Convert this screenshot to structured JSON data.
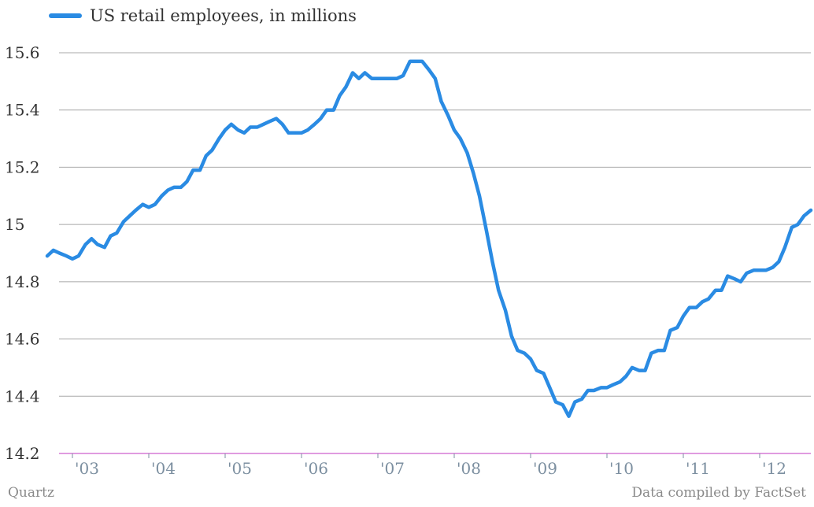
{
  "chart_data": {
    "type": "line",
    "legend_placement": "top-left",
    "series": [
      {
        "name": "US retail employees, in millions",
        "color": "#2a8be3",
        "points": [
          [
            2002.67,
            14.89
          ],
          [
            2002.75,
            14.91
          ],
          [
            2002.83,
            14.9
          ],
          [
            2002.92,
            14.89
          ],
          [
            2003.0,
            14.88
          ],
          [
            2003.08,
            14.89
          ],
          [
            2003.17,
            14.93
          ],
          [
            2003.25,
            14.95
          ],
          [
            2003.33,
            14.93
          ],
          [
            2003.42,
            14.92
          ],
          [
            2003.5,
            14.96
          ],
          [
            2003.58,
            14.97
          ],
          [
            2003.67,
            15.01
          ],
          [
            2003.75,
            15.03
          ],
          [
            2003.83,
            15.05
          ],
          [
            2003.92,
            15.07
          ],
          [
            2004.0,
            15.06
          ],
          [
            2004.08,
            15.07
          ],
          [
            2004.17,
            15.1
          ],
          [
            2004.25,
            15.12
          ],
          [
            2004.33,
            15.13
          ],
          [
            2004.42,
            15.13
          ],
          [
            2004.5,
            15.15
          ],
          [
            2004.58,
            15.19
          ],
          [
            2004.67,
            15.19
          ],
          [
            2004.75,
            15.24
          ],
          [
            2004.83,
            15.26
          ],
          [
            2004.92,
            15.3
          ],
          [
            2005.0,
            15.33
          ],
          [
            2005.08,
            15.35
          ],
          [
            2005.17,
            15.33
          ],
          [
            2005.25,
            15.32
          ],
          [
            2005.33,
            15.34
          ],
          [
            2005.42,
            15.34
          ],
          [
            2005.5,
            15.35
          ],
          [
            2005.58,
            15.36
          ],
          [
            2005.67,
            15.37
          ],
          [
            2005.75,
            15.35
          ],
          [
            2005.83,
            15.32
          ],
          [
            2005.92,
            15.32
          ],
          [
            2006.0,
            15.32
          ],
          [
            2006.08,
            15.33
          ],
          [
            2006.17,
            15.35
          ],
          [
            2006.25,
            15.37
          ],
          [
            2006.33,
            15.4
          ],
          [
            2006.42,
            15.4
          ],
          [
            2006.5,
            15.45
          ],
          [
            2006.58,
            15.48
          ],
          [
            2006.67,
            15.53
          ],
          [
            2006.75,
            15.51
          ],
          [
            2006.83,
            15.53
          ],
          [
            2006.92,
            15.51
          ],
          [
            2007.0,
            15.51
          ],
          [
            2007.08,
            15.51
          ],
          [
            2007.17,
            15.51
          ],
          [
            2007.25,
            15.51
          ],
          [
            2007.33,
            15.52
          ],
          [
            2007.42,
            15.57
          ],
          [
            2007.5,
            15.57
          ],
          [
            2007.58,
            15.57
          ],
          [
            2007.67,
            15.54
          ],
          [
            2007.75,
            15.51
          ],
          [
            2007.83,
            15.43
          ],
          [
            2007.92,
            15.38
          ],
          [
            2008.0,
            15.33
          ],
          [
            2008.08,
            15.3
          ],
          [
            2008.17,
            15.25
          ],
          [
            2008.25,
            15.18
          ],
          [
            2008.33,
            15.1
          ],
          [
            2008.42,
            14.98
          ],
          [
            2008.5,
            14.87
          ],
          [
            2008.58,
            14.77
          ],
          [
            2008.67,
            14.7
          ],
          [
            2008.75,
            14.61
          ],
          [
            2008.83,
            14.56
          ],
          [
            2008.92,
            14.55
          ],
          [
            2009.0,
            14.53
          ],
          [
            2009.08,
            14.49
          ],
          [
            2009.17,
            14.48
          ],
          [
            2009.25,
            14.43
          ],
          [
            2009.33,
            14.38
          ],
          [
            2009.42,
            14.37
          ],
          [
            2009.5,
            14.33
          ],
          [
            2009.58,
            14.38
          ],
          [
            2009.67,
            14.39
          ],
          [
            2009.75,
            14.42
          ],
          [
            2009.83,
            14.42
          ],
          [
            2009.92,
            14.43
          ],
          [
            2010.0,
            14.43
          ],
          [
            2010.08,
            14.44
          ],
          [
            2010.17,
            14.45
          ],
          [
            2010.25,
            14.47
          ],
          [
            2010.33,
            14.5
          ],
          [
            2010.42,
            14.49
          ],
          [
            2010.5,
            14.49
          ],
          [
            2010.58,
            14.55
          ],
          [
            2010.67,
            14.56
          ],
          [
            2010.75,
            14.56
          ],
          [
            2010.83,
            14.63
          ],
          [
            2010.92,
            14.64
          ],
          [
            2011.0,
            14.68
          ],
          [
            2011.08,
            14.71
          ],
          [
            2011.17,
            14.71
          ],
          [
            2011.25,
            14.73
          ],
          [
            2011.33,
            14.74
          ],
          [
            2011.42,
            14.77
          ],
          [
            2011.5,
            14.77
          ],
          [
            2011.58,
            14.82
          ],
          [
            2011.67,
            14.81
          ],
          [
            2011.75,
            14.8
          ],
          [
            2011.83,
            14.83
          ],
          [
            2011.92,
            14.84
          ],
          [
            2012.0,
            14.84
          ],
          [
            2012.08,
            14.84
          ],
          [
            2012.17,
            14.85
          ],
          [
            2012.25,
            14.87
          ],
          [
            2012.33,
            14.92
          ],
          [
            2012.42,
            14.99
          ],
          [
            2012.5,
            15.0
          ],
          [
            2012.58,
            15.03
          ],
          [
            2012.67,
            15.05
          ]
        ]
      }
    ],
    "y_ticks": [
      {
        "value": 14.2,
        "label": "14.2"
      },
      {
        "value": 14.4,
        "label": "14.4"
      },
      {
        "value": 14.6,
        "label": "14.6"
      },
      {
        "value": 14.8,
        "label": "14.8"
      },
      {
        "value": 15.0,
        "label": "15"
      },
      {
        "value": 15.2,
        "label": "15.2"
      },
      {
        "value": 15.4,
        "label": "15.4"
      },
      {
        "value": 15.6,
        "label": "15.6"
      }
    ],
    "x_ticks": [
      {
        "value": 2003,
        "label": "'03"
      },
      {
        "value": 2004,
        "label": "'04"
      },
      {
        "value": 2005,
        "label": "'05"
      },
      {
        "value": 2006,
        "label": "'06"
      },
      {
        "value": 2007,
        "label": "'07"
      },
      {
        "value": 2008,
        "label": "'08"
      },
      {
        "value": 2009,
        "label": "'09"
      },
      {
        "value": 2010,
        "label": "'10"
      },
      {
        "value": 2011,
        "label": "'11"
      },
      {
        "value": 2012,
        "label": "'12"
      }
    ],
    "ylim": [
      14.2,
      15.6
    ],
    "xlim": [
      2002.67,
      2012.67
    ],
    "grid": true,
    "baseline_color": "#d67ad6",
    "gridline_color": "#a8a8a8",
    "y_tick_color": "#333333",
    "x_tick_color": "#7c8fa0"
  },
  "footer": {
    "source_left": "Quartz",
    "source_right": "Data compiled by FactSet"
  }
}
